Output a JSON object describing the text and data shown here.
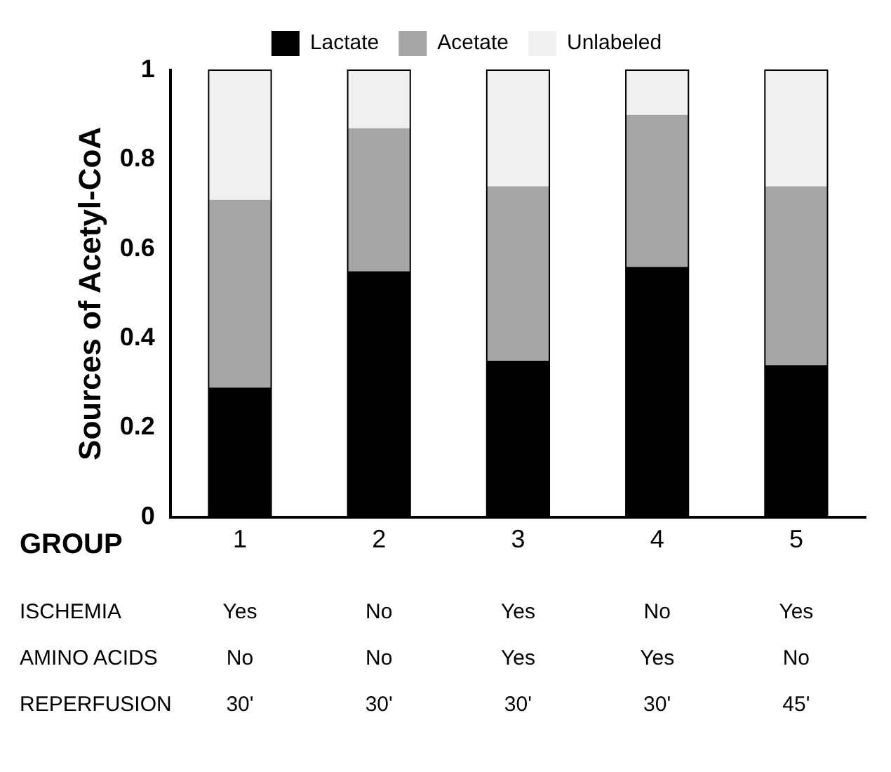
{
  "chart_data": {
    "type": "bar",
    "stacked": true,
    "xlabel": "GROUP",
    "ylabel": "Sources of Acetyl-CoA",
    "categories": [
      "1",
      "2",
      "3",
      "4",
      "5"
    ],
    "series": [
      {
        "name": "Lactate",
        "color": "#000000",
        "values": [
          0.29,
          0.55,
          0.35,
          0.56,
          0.34
        ]
      },
      {
        "name": "Acetate",
        "color": "#a6a6a6",
        "values": [
          0.42,
          0.32,
          0.39,
          0.34,
          0.4
        ]
      },
      {
        "name": "Unlabeled",
        "color": "#f0f0f0",
        "values": [
          0.29,
          0.13,
          0.26,
          0.1,
          0.26
        ]
      }
    ],
    "ylim": [
      0,
      1
    ],
    "yticks": [
      0,
      0.2,
      0.4,
      0.6,
      0.8,
      1
    ],
    "grid": false,
    "legend": "top",
    "annotations": [
      "ISCHEMIA",
      "Yes",
      "No",
      "Yes",
      "No",
      "Yes",
      "AMINO ACIDS",
      "No",
      "No",
      "Yes",
      "Yes",
      "No",
      "REPERFUSION",
      "30'",
      "30'",
      "30'",
      "30'",
      "45'"
    ]
  }
}
